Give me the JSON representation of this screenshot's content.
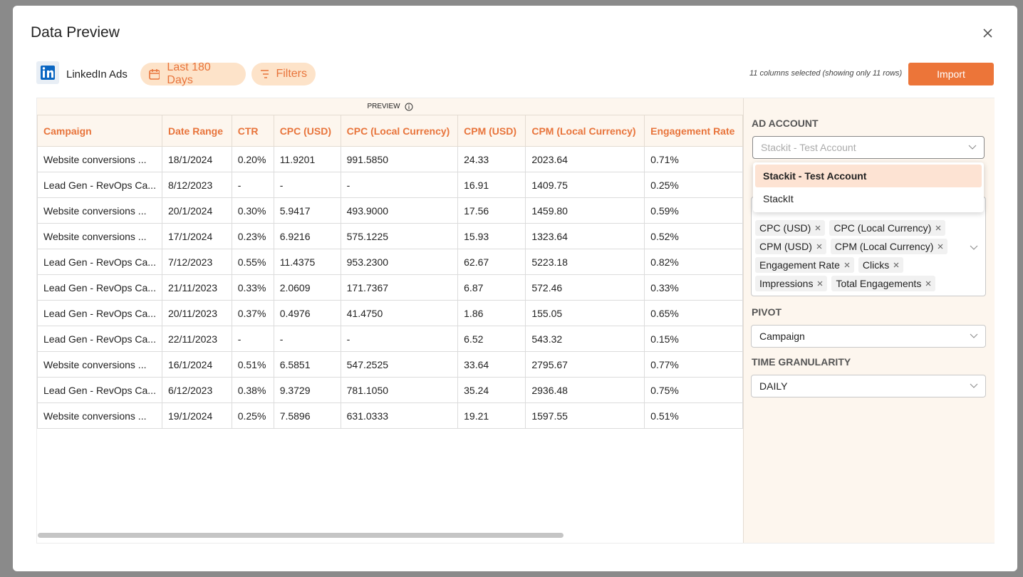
{
  "header": {
    "title": "Data Preview"
  },
  "toolbar": {
    "source": "LinkedIn Ads",
    "date_range": "Last 180 Days",
    "filters": "Filters",
    "selection_note": "11 columns selected (showing only 11 rows)",
    "import": "Import"
  },
  "table": {
    "caption": "PREVIEW",
    "columns": [
      "Campaign",
      "Date Range",
      "CTR",
      "CPC (USD)",
      "CPC (Local Currency)",
      "CPM (USD)",
      "CPM (Local Currency)",
      "Engagement Rate"
    ],
    "rows": [
      [
        "Website conversions ...",
        "18/1/2024",
        "0.20%",
        "11.9201",
        "991.5850",
        "24.33",
        "2023.64",
        "0.71%"
      ],
      [
        "Lead Gen - RevOps Ca...",
        "8/12/2023",
        "-",
        "-",
        "-",
        "16.91",
        "1409.75",
        "0.25%"
      ],
      [
        "Website conversions ...",
        "20/1/2024",
        "0.30%",
        "5.9417",
        "493.9000",
        "17.56",
        "1459.80",
        "0.59%"
      ],
      [
        "Website conversions ...",
        "17/1/2024",
        "0.23%",
        "6.9216",
        "575.1225",
        "15.93",
        "1323.64",
        "0.52%"
      ],
      [
        "Lead Gen - RevOps Ca...",
        "7/12/2023",
        "0.55%",
        "11.4375",
        "953.2300",
        "62.67",
        "5223.18",
        "0.82%"
      ],
      [
        "Lead Gen - RevOps Ca...",
        "21/11/2023",
        "0.33%",
        "2.0609",
        "171.7367",
        "6.87",
        "572.46",
        "0.33%"
      ],
      [
        "Lead Gen - RevOps Ca...",
        "20/11/2023",
        "0.37%",
        "0.4976",
        "41.4750",
        "1.86",
        "155.05",
        "0.65%"
      ],
      [
        "Lead Gen - RevOps Ca...",
        "22/11/2023",
        "-",
        "-",
        "-",
        "6.52",
        "543.32",
        "0.15%"
      ],
      [
        "Website conversions ...",
        "16/1/2024",
        "0.51%",
        "6.5851",
        "547.2525",
        "33.64",
        "2795.67",
        "0.77%"
      ],
      [
        "Lead Gen - RevOps Ca...",
        "6/12/2023",
        "0.38%",
        "9.3729",
        "781.1050",
        "35.24",
        "2936.48",
        "0.75%"
      ],
      [
        "Website conversions ...",
        "19/1/2024",
        "0.25%",
        "7.5896",
        "631.0333",
        "19.21",
        "1597.55",
        "0.51%"
      ]
    ]
  },
  "sidebar": {
    "ad_account_label": "AD ACCOUNT",
    "ad_account_value": "Stackit - Test Account",
    "ad_account_options": [
      "Stackit - Test Account",
      "StackIt"
    ],
    "selected_columns": [
      "CPC (USD)",
      "CPC (Local Currency)",
      "CPM (USD)",
      "CPM (Local Currency)",
      "Engagement Rate",
      "Clicks",
      "Impressions",
      "Total Engagements"
    ],
    "pivot_label": "PIVOT",
    "pivot_value": "Campaign",
    "granularity_label": "TIME GRANULARITY",
    "granularity_value": "DAILY"
  }
}
